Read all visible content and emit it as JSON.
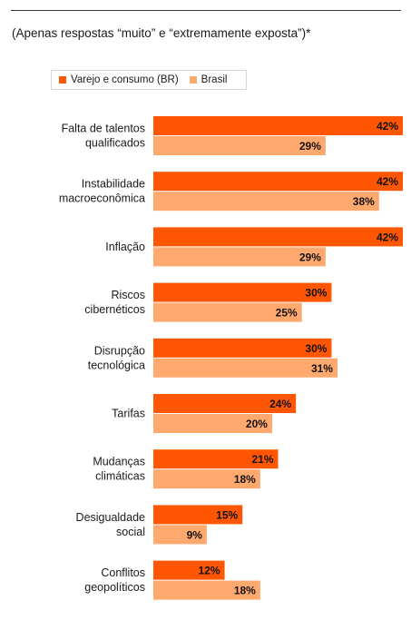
{
  "subtitle": "(Apenas respostas “muito” e “extremamente exposta”)*",
  "chart_data": {
    "type": "bar",
    "orientation": "horizontal",
    "title": "",
    "categories": [
      [
        "Falta de talentos",
        "qualificados"
      ],
      [
        "Instabilidade",
        "macroeconômica"
      ],
      [
        "Inflação"
      ],
      [
        "Riscos",
        "cibernéticos"
      ],
      [
        "Disrupção",
        "tecnológica"
      ],
      [
        "Tarifas"
      ],
      [
        "Mudanças",
        "climáticas"
      ],
      [
        "Desigualdade",
        "social"
      ],
      [
        "Conflitos",
        "geopolíticos"
      ]
    ],
    "series": [
      {
        "name": "Varejo e consumo (BR)",
        "color": "#fe5602",
        "values": [
          42,
          42,
          42,
          30,
          30,
          24,
          21,
          15,
          12
        ],
        "labels": [
          "42%",
          "42%",
          "42%",
          "30%",
          "30%",
          "24%",
          "21%",
          "15%",
          "12%"
        ]
      },
      {
        "name": "Brasil",
        "color": "#ffa96f",
        "values": [
          29,
          38,
          29,
          25,
          31,
          20,
          18,
          9,
          18
        ],
        "labels": [
          "29%",
          "38%",
          "29%",
          "25%",
          "31%",
          "20%",
          "18%",
          "9%",
          "18%"
        ]
      }
    ],
    "xlim": [
      0,
      42
    ],
    "grid": false,
    "legend": "top-left"
  }
}
